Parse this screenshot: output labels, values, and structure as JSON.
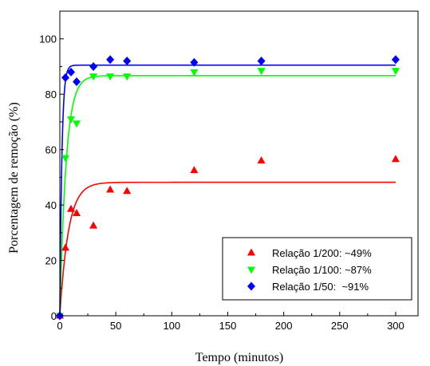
{
  "chart_data": {
    "type": "scatter",
    "xlabel": "Tempo (minutos)",
    "ylabel": "Porcentagem de remoção (%)",
    "xlim": [
      0,
      320
    ],
    "ylim": [
      0,
      110
    ],
    "xticks": [
      0,
      50,
      100,
      150,
      200,
      250,
      300
    ],
    "yticks": [
      0,
      20,
      40,
      60,
      80,
      100
    ],
    "grid": false,
    "legend_position": "bottom-right",
    "series": [
      {
        "name": "Relação 1/200: ~49%",
        "marker": "triangle-up",
        "color": "#ff0000",
        "x": [
          0,
          5,
          10,
          15,
          30,
          45,
          60,
          120,
          180,
          300
        ],
        "y": [
          0,
          24.5,
          38.5,
          37,
          32.5,
          45.5,
          45,
          52.5,
          56,
          56.5
        ],
        "fit": {
          "plateau": 48.2,
          "rate": 0.13
        }
      },
      {
        "name": "Relação 1/100: ~87%",
        "marker": "triangle-down",
        "color": "#00ff00",
        "x": [
          0,
          5,
          10,
          15,
          30,
          45,
          60,
          120,
          180,
          300
        ],
        "y": [
          0,
          57,
          71,
          69.5,
          86.5,
          86.5,
          86.5,
          88,
          88.5,
          88.5
        ],
        "fit": {
          "plateau": 86.7,
          "rate": 0.18
        }
      },
      {
        "name": "Relação 1/50:  ~91%",
        "marker": "diamond",
        "color": "#0000ff",
        "x": [
          0,
          5,
          10,
          15,
          30,
          45,
          60,
          120,
          180,
          300
        ],
        "y": [
          0,
          86,
          88,
          84.5,
          90,
          92.5,
          92,
          91.5,
          92,
          92.5
        ],
        "fit": {
          "plateau": 90.5,
          "rate": 0.55
        }
      }
    ]
  }
}
